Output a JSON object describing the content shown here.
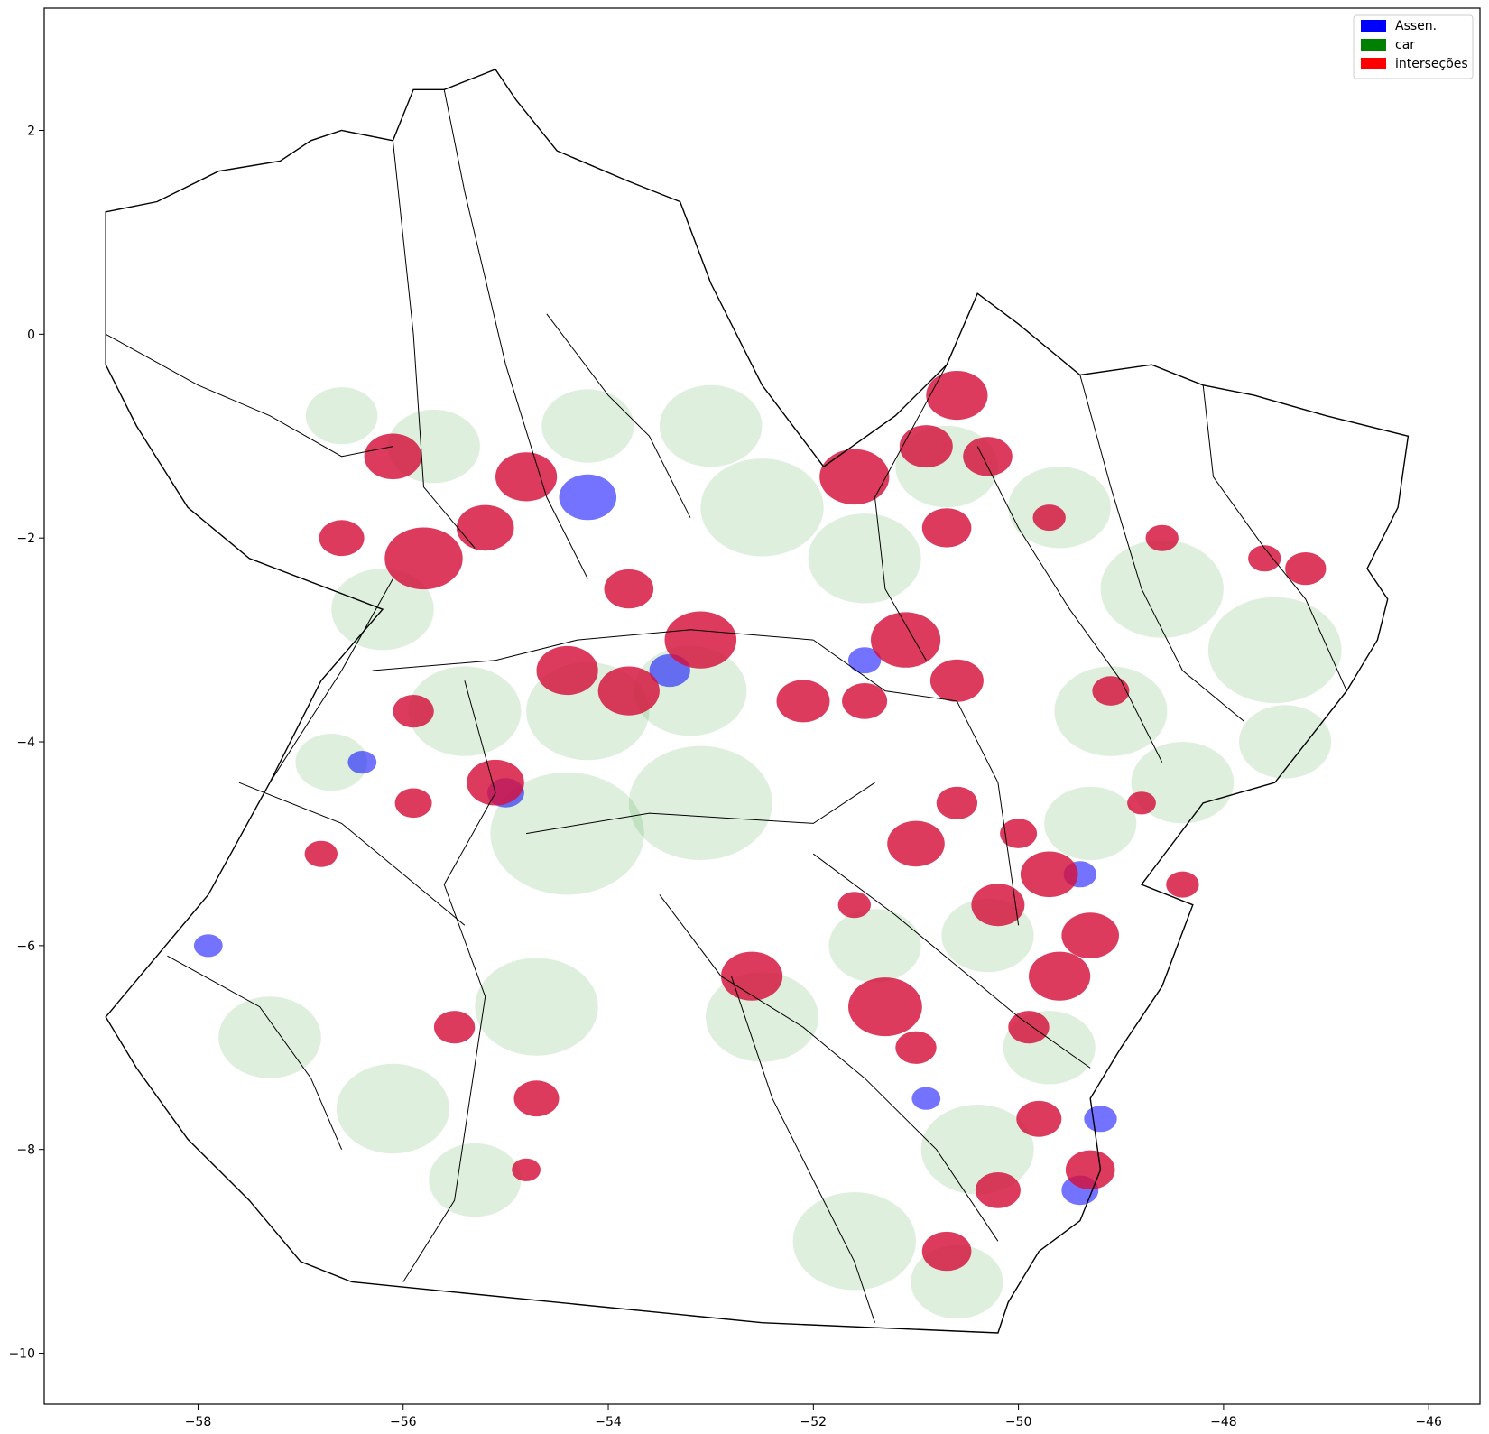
{
  "colors": {
    "assen": "#0000ff",
    "car": "#008000",
    "intersecoes": "#ff0000",
    "boundary": "#000000",
    "background": "#ffffff"
  },
  "legend": {
    "position": "top-right",
    "items": [
      {
        "label": "Assen.",
        "color": "#0000ff"
      },
      {
        "label": "car",
        "color": "#008000"
      },
      {
        "label": "interseções",
        "color": "#ff0000"
      }
    ]
  },
  "axes": {
    "xlim": [
      -59.5,
      -45.5
    ],
    "ylim": [
      -10.5,
      3.2
    ],
    "x_ticks": [
      -58,
      -56,
      -54,
      -52,
      -50,
      -48,
      -46
    ],
    "x_tick_labels": [
      "−58",
      "−56",
      "−54",
      "−52",
      "−50",
      "−48",
      "−46"
    ],
    "y_ticks": [
      2,
      0,
      -2,
      -4,
      -6,
      -8,
      -10
    ],
    "y_tick_labels": [
      "2",
      "0",
      "−2",
      "−4",
      "−6",
      "−8",
      "−10"
    ]
  },
  "map": {
    "state_outline": [
      [
        -58.9,
        1.2
      ],
      [
        -58.4,
        1.3
      ],
      [
        -57.8,
        1.6
      ],
      [
        -57.2,
        1.7
      ],
      [
        -56.9,
        1.9
      ],
      [
        -56.6,
        2.0
      ],
      [
        -56.1,
        1.9
      ],
      [
        -55.9,
        2.4
      ],
      [
        -55.6,
        2.4
      ],
      [
        -55.1,
        2.6
      ],
      [
        -54.9,
        2.3
      ],
      [
        -54.5,
        1.8
      ],
      [
        -53.8,
        1.5
      ],
      [
        -53.3,
        1.3
      ],
      [
        -53.0,
        0.5
      ],
      [
        -52.5,
        -0.5
      ],
      [
        -51.9,
        -1.3
      ],
      [
        -51.2,
        -0.8
      ],
      [
        -50.7,
        -0.3
      ],
      [
        -50.4,
        0.4
      ],
      [
        -50.0,
        0.1
      ],
      [
        -49.4,
        -0.4
      ],
      [
        -48.7,
        -0.3
      ],
      [
        -48.2,
        -0.5
      ],
      [
        -47.7,
        -0.6
      ],
      [
        -47.0,
        -0.8
      ],
      [
        -46.2,
        -1.0
      ],
      [
        -46.3,
        -1.7
      ],
      [
        -46.6,
        -2.3
      ],
      [
        -46.4,
        -2.6
      ],
      [
        -46.5,
        -3.0
      ],
      [
        -46.8,
        -3.5
      ],
      [
        -47.5,
        -4.4
      ],
      [
        -48.2,
        -4.6
      ],
      [
        -48.8,
        -5.4
      ],
      [
        -48.3,
        -5.6
      ],
      [
        -48.6,
        -6.4
      ],
      [
        -49.0,
        -7.0
      ],
      [
        -49.3,
        -7.5
      ],
      [
        -49.2,
        -8.2
      ],
      [
        -49.4,
        -8.7
      ],
      [
        -49.8,
        -9.0
      ],
      [
        -50.1,
        -9.5
      ],
      [
        -50.2,
        -9.8
      ],
      [
        -52.5,
        -9.7
      ],
      [
        -55.5,
        -9.4
      ],
      [
        -56.5,
        -9.3
      ],
      [
        -57.0,
        -9.1
      ],
      [
        -57.5,
        -8.5
      ],
      [
        -58.1,
        -7.9
      ],
      [
        -58.6,
        -7.2
      ],
      [
        -58.9,
        -6.7
      ],
      [
        -58.4,
        -6.1
      ],
      [
        -57.9,
        -5.5
      ],
      [
        -57.3,
        -4.4
      ],
      [
        -56.8,
        -3.4
      ],
      [
        -56.2,
        -2.7
      ],
      [
        -57.5,
        -2.2
      ],
      [
        -58.1,
        -1.7
      ],
      [
        -58.6,
        -0.9
      ],
      [
        -58.9,
        -0.3
      ],
      [
        -58.9,
        1.2
      ]
    ],
    "boundaries": [
      [
        [
          -56.1,
          1.9
        ],
        [
          -55.9,
          0.0
        ],
        [
          -55.8,
          -1.5
        ],
        [
          -55.3,
          -2.1
        ]
      ],
      [
        [
          -55.6,
          2.4
        ],
        [
          -55.4,
          1.4
        ],
        [
          -55.0,
          -0.3
        ],
        [
          -54.6,
          -1.6
        ],
        [
          -54.2,
          -2.4
        ]
      ],
      [
        [
          -54.6,
          0.2
        ],
        [
          -54.0,
          -0.6
        ],
        [
          -53.6,
          -1.0
        ],
        [
          -53.2,
          -1.8
        ]
      ],
      [
        [
          -56.1,
          -2.4
        ],
        [
          -56.6,
          -3.3
        ],
        [
          -57.3,
          -4.4
        ]
      ],
      [
        [
          -56.3,
          -3.3
        ],
        [
          -55.1,
          -3.2
        ],
        [
          -54.3,
          -3.0
        ],
        [
          -53.2,
          -2.9
        ],
        [
          -52.0,
          -3.0
        ]
      ],
      [
        [
          -55.4,
          -3.4
        ],
        [
          -55.1,
          -4.5
        ],
        [
          -55.6,
          -5.4
        ],
        [
          -55.2,
          -6.5
        ],
        [
          -55.5,
          -8.5
        ],
        [
          -56.0,
          -9.3
        ]
      ],
      [
        [
          -54.8,
          -4.9
        ],
        [
          -53.6,
          -4.7
        ],
        [
          -52.0,
          -4.8
        ],
        [
          -51.4,
          -4.4
        ]
      ],
      [
        [
          -52.0,
          -3.0
        ],
        [
          -51.3,
          -3.5
        ],
        [
          -50.6,
          -3.6
        ],
        [
          -50.2,
          -4.4
        ],
        [
          -50.0,
          -5.8
        ]
      ],
      [
        [
          -52.0,
          -5.1
        ],
        [
          -51.2,
          -5.7
        ],
        [
          -50.6,
          -6.2
        ],
        [
          -50.0,
          -6.7
        ],
        [
          -49.3,
          -7.2
        ]
      ],
      [
        [
          -53.5,
          -5.5
        ],
        [
          -52.9,
          -6.3
        ],
        [
          -52.1,
          -6.8
        ],
        [
          -51.5,
          -7.3
        ],
        [
          -50.8,
          -8.0
        ],
        [
          -50.2,
          -8.9
        ]
      ],
      [
        [
          -50.7,
          -0.3
        ],
        [
          -51.4,
          -1.6
        ],
        [
          -51.3,
          -2.5
        ],
        [
          -50.9,
          -3.2
        ]
      ],
      [
        [
          -50.4,
          -1.1
        ],
        [
          -50.0,
          -1.9
        ],
        [
          -49.5,
          -2.7
        ],
        [
          -49.0,
          -3.4
        ],
        [
          -48.6,
          -4.2
        ]
      ],
      [
        [
          -49.4,
          -0.4
        ],
        [
          -49.1,
          -1.5
        ],
        [
          -48.8,
          -2.5
        ],
        [
          -48.4,
          -3.3
        ],
        [
          -47.8,
          -3.8
        ]
      ],
      [
        [
          -48.2,
          -0.5
        ],
        [
          -48.1,
          -1.4
        ],
        [
          -47.6,
          -2.1
        ],
        [
          -47.2,
          -2.6
        ],
        [
          -46.8,
          -3.5
        ]
      ],
      [
        [
          -58.9,
          0.0
        ],
        [
          -58.0,
          -0.5
        ],
        [
          -57.3,
          -0.8
        ],
        [
          -56.6,
          -1.2
        ],
        [
          -56.1,
          -1.1
        ]
      ],
      [
        [
          -57.6,
          -4.4
        ],
        [
          -56.6,
          -4.8
        ],
        [
          -56.0,
          -5.3
        ],
        [
          -55.4,
          -5.8
        ]
      ],
      [
        [
          -58.3,
          -6.1
        ],
        [
          -57.4,
          -6.6
        ],
        [
          -56.9,
          -7.3
        ],
        [
          -56.6,
          -8.0
        ]
      ],
      [
        [
          -52.8,
          -6.3
        ],
        [
          -52.4,
          -7.5
        ],
        [
          -52.0,
          -8.3
        ],
        [
          -51.6,
          -9.1
        ],
        [
          -51.4,
          -9.7
        ]
      ]
    ],
    "car_patches": [
      [
        -56.2,
        -2.7,
        0.5
      ],
      [
        -56.7,
        -4.2,
        0.35
      ],
      [
        -55.4,
        -3.7,
        0.55
      ],
      [
        -54.2,
        -3.7,
        0.6
      ],
      [
        -53.2,
        -3.5,
        0.55
      ],
      [
        -54.4,
        -4.9,
        0.75
      ],
      [
        -53.1,
        -4.6,
        0.7
      ],
      [
        -52.5,
        -1.7,
        0.6
      ],
      [
        -51.5,
        -2.2,
        0.55
      ],
      [
        -50.7,
        -1.3,
        0.5
      ],
      [
        -49.6,
        -1.7,
        0.5
      ],
      [
        -48.6,
        -2.5,
        0.6
      ],
      [
        -47.5,
        -3.1,
        0.65
      ],
      [
        -49.1,
        -3.7,
        0.55
      ],
      [
        -49.3,
        -4.8,
        0.45
      ],
      [
        -50.3,
        -5.9,
        0.45
      ],
      [
        -49.7,
        -7.0,
        0.45
      ],
      [
        -50.4,
        -8.0,
        0.55
      ],
      [
        -51.6,
        -8.9,
        0.6
      ],
      [
        -50.6,
        -9.3,
        0.45
      ],
      [
        -54.7,
        -6.6,
        0.6
      ],
      [
        -55.3,
        -8.3,
        0.45
      ],
      [
        -56.1,
        -7.6,
        0.55
      ],
      [
        -57.3,
        -6.9,
        0.5
      ],
      [
        -54.2,
        -0.9,
        0.45
      ],
      [
        -53.0,
        -0.9,
        0.5
      ],
      [
        -55.7,
        -1.1,
        0.45
      ],
      [
        -56.6,
        -0.8,
        0.35
      ],
      [
        -52.5,
        -6.7,
        0.55
      ],
      [
        -51.4,
        -6.0,
        0.45
      ],
      [
        -48.4,
        -4.4,
        0.5
      ],
      [
        -47.4,
        -4.0,
        0.45
      ]
    ],
    "assen_patches": [
      [
        -54.2,
        -1.6,
        0.28
      ],
      [
        -55.0,
        -4.5,
        0.18
      ],
      [
        -56.4,
        -4.2,
        0.14
      ],
      [
        -57.9,
        -6.0,
        0.14
      ],
      [
        -49.4,
        -8.4,
        0.18
      ],
      [
        -49.2,
        -7.7,
        0.16
      ],
      [
        -51.5,
        -3.2,
        0.16
      ],
      [
        -50.9,
        -7.5,
        0.14
      ],
      [
        -53.4,
        -3.3,
        0.2
      ],
      [
        -49.4,
        -5.3,
        0.16
      ]
    ],
    "intersect_patches": [
      [
        -56.1,
        -1.2,
        0.28
      ],
      [
        -55.8,
        -2.2,
        0.38
      ],
      [
        -54.8,
        -1.4,
        0.3
      ],
      [
        -55.2,
        -1.9,
        0.28
      ],
      [
        -56.6,
        -2.0,
        0.22
      ],
      [
        -53.8,
        -2.5,
        0.24
      ],
      [
        -54.4,
        -3.3,
        0.3
      ],
      [
        -53.1,
        -3.0,
        0.35
      ],
      [
        -53.8,
        -3.5,
        0.3
      ],
      [
        -52.1,
        -3.6,
        0.26
      ],
      [
        -51.1,
        -3.0,
        0.34
      ],
      [
        -50.6,
        -3.4,
        0.26
      ],
      [
        -51.5,
        -3.6,
        0.22
      ],
      [
        -51.6,
        -1.4,
        0.34
      ],
      [
        -50.6,
        -0.6,
        0.3
      ],
      [
        -50.9,
        -1.1,
        0.26
      ],
      [
        -50.3,
        -1.2,
        0.24
      ],
      [
        -50.7,
        -1.9,
        0.24
      ],
      [
        -49.7,
        -1.8,
        0.16
      ],
      [
        -48.6,
        -2.0,
        0.16
      ],
      [
        -47.2,
        -2.3,
        0.2
      ],
      [
        -47.6,
        -2.2,
        0.16
      ],
      [
        -55.1,
        -4.4,
        0.28
      ],
      [
        -55.9,
        -4.6,
        0.18
      ],
      [
        -55.9,
        -3.7,
        0.2
      ],
      [
        -56.8,
        -5.1,
        0.16
      ],
      [
        -51.0,
        -5.0,
        0.28
      ],
      [
        -50.6,
        -4.6,
        0.2
      ],
      [
        -50.2,
        -5.6,
        0.26
      ],
      [
        -49.7,
        -5.3,
        0.28
      ],
      [
        -49.3,
        -5.9,
        0.28
      ],
      [
        -49.6,
        -6.3,
        0.3
      ],
      [
        -51.3,
        -6.6,
        0.36
      ],
      [
        -52.6,
        -6.3,
        0.3
      ],
      [
        -51.0,
        -7.0,
        0.2
      ],
      [
        -49.9,
        -6.8,
        0.2
      ],
      [
        -49.8,
        -7.7,
        0.22
      ],
      [
        -49.3,
        -8.2,
        0.24
      ],
      [
        -50.2,
        -8.4,
        0.22
      ],
      [
        -50.7,
        -9.0,
        0.24
      ],
      [
        -55.5,
        -6.8,
        0.2
      ],
      [
        -54.7,
        -7.5,
        0.22
      ],
      [
        -54.8,
        -8.2,
        0.14
      ],
      [
        -51.6,
        -5.6,
        0.16
      ],
      [
        -49.1,
        -3.5,
        0.18
      ],
      [
        -48.8,
        -4.6,
        0.14
      ],
      [
        -48.4,
        -5.4,
        0.16
      ],
      [
        -50.0,
        -4.9,
        0.18
      ]
    ]
  }
}
